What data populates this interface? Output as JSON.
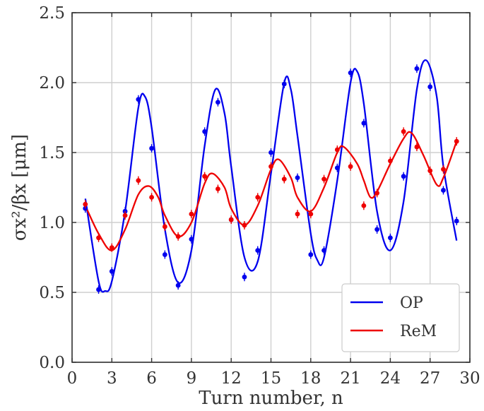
{
  "chart_data": {
    "type": "scatter",
    "xlabel": "Turn number, n",
    "ylabel": "σx²/βx [μm]",
    "xlim": [
      0,
      30
    ],
    "ylim": [
      0.0,
      2.5
    ],
    "xticks": [
      "0",
      "3",
      "6",
      "9",
      "12",
      "15",
      "18",
      "21",
      "24",
      "27",
      "30"
    ],
    "yticks": [
      "0.0",
      "0.5",
      "1.0",
      "1.5",
      "2.0",
      "2.5"
    ],
    "grid": true,
    "legend_position": "bottom-right",
    "series": [
      {
        "name": "OP",
        "color": "#0000ee",
        "points": [
          [
            1,
            1.1
          ],
          [
            2,
            0.52
          ],
          [
            3,
            0.65
          ],
          [
            4,
            1.08
          ],
          [
            5,
            1.88
          ],
          [
            6,
            1.53
          ],
          [
            7,
            0.77
          ],
          [
            8,
            0.55
          ],
          [
            9,
            0.88
          ],
          [
            10,
            1.65
          ],
          [
            11,
            1.86
          ],
          [
            12,
            1.02
          ],
          [
            13,
            0.61
          ],
          [
            14,
            0.8
          ],
          [
            15,
            1.5
          ],
          [
            16,
            1.99
          ],
          [
            17,
            1.32
          ],
          [
            18,
            0.77
          ],
          [
            19,
            0.8
          ],
          [
            20,
            1.39
          ],
          [
            21,
            2.07
          ],
          [
            22,
            1.71
          ],
          [
            23,
            0.95
          ],
          [
            24,
            0.89
          ],
          [
            25,
            1.33
          ],
          [
            26,
            2.1
          ],
          [
            27,
            1.97
          ],
          [
            28,
            1.23
          ],
          [
            29,
            1.01
          ]
        ],
        "fit": [
          [
            1,
            1.17
          ],
          [
            2,
            0.58
          ],
          [
            2.5,
            0.51
          ],
          [
            3,
            0.58
          ],
          [
            4,
            1.08
          ],
          [
            5,
            1.82
          ],
          [
            5.5,
            1.9
          ],
          [
            6,
            1.68
          ],
          [
            7,
            0.95
          ],
          [
            8,
            0.57
          ],
          [
            9,
            0.8
          ],
          [
            10,
            1.55
          ],
          [
            10.8,
            1.95
          ],
          [
            11.5,
            1.78
          ],
          [
            12,
            1.4
          ],
          [
            13,
            0.75
          ],
          [
            14,
            0.72
          ],
          [
            15,
            1.35
          ],
          [
            16,
            2.0
          ],
          [
            16.5,
            1.95
          ],
          [
            17,
            1.62
          ],
          [
            18,
            0.92
          ],
          [
            18.5,
            0.73
          ],
          [
            19,
            0.75
          ],
          [
            20,
            1.3
          ],
          [
            21,
            2.0
          ],
          [
            21.5,
            2.08
          ],
          [
            22,
            1.85
          ],
          [
            23,
            1.08
          ],
          [
            24,
            0.8
          ],
          [
            25,
            1.15
          ],
          [
            26,
            1.95
          ],
          [
            26.7,
            2.16
          ],
          [
            27.5,
            1.9
          ],
          [
            28,
            1.4
          ],
          [
            29,
            0.87
          ]
        ]
      },
      {
        "name": "ReM",
        "color": "#ee0000",
        "points": [
          [
            1,
            1.13
          ],
          [
            2,
            0.89
          ],
          [
            3,
            0.82
          ],
          [
            4,
            1.05
          ],
          [
            5,
            1.3
          ],
          [
            6,
            1.18
          ],
          [
            7,
            0.97
          ],
          [
            8,
            0.9
          ],
          [
            9,
            1.06
          ],
          [
            10,
            1.33
          ],
          [
            11,
            1.24
          ],
          [
            12,
            1.02
          ],
          [
            13,
            0.98
          ],
          [
            14,
            1.18
          ],
          [
            15,
            1.4
          ],
          [
            16,
            1.31
          ],
          [
            17,
            1.06
          ],
          [
            18,
            1.06
          ],
          [
            19,
            1.31
          ],
          [
            20,
            1.52
          ],
          [
            21,
            1.4
          ],
          [
            22,
            1.12
          ],
          [
            23,
            1.21
          ],
          [
            24,
            1.44
          ],
          [
            25,
            1.65
          ],
          [
            26,
            1.54
          ],
          [
            27,
            1.37
          ],
          [
            28,
            1.38
          ],
          [
            29,
            1.58
          ]
        ],
        "fit": [
          [
            1,
            1.12
          ],
          [
            2,
            0.92
          ],
          [
            3,
            0.8
          ],
          [
            4,
            0.95
          ],
          [
            5,
            1.2
          ],
          [
            5.8,
            1.26
          ],
          [
            6.5,
            1.18
          ],
          [
            7,
            1.05
          ],
          [
            8,
            0.9
          ],
          [
            9,
            1.0
          ],
          [
            10,
            1.28
          ],
          [
            10.6,
            1.35
          ],
          [
            11.5,
            1.25
          ],
          [
            12,
            1.1
          ],
          [
            13,
            0.98
          ],
          [
            14,
            1.12
          ],
          [
            15,
            1.38
          ],
          [
            15.6,
            1.45
          ],
          [
            16.5,
            1.32
          ],
          [
            17,
            1.18
          ],
          [
            18,
            1.08
          ],
          [
            19,
            1.25
          ],
          [
            20,
            1.5
          ],
          [
            20.5,
            1.54
          ],
          [
            21.5,
            1.42
          ],
          [
            22,
            1.3
          ],
          [
            22.5,
            1.18
          ],
          [
            23,
            1.22
          ],
          [
            24,
            1.42
          ],
          [
            25,
            1.6
          ],
          [
            25.6,
            1.64
          ],
          [
            26.5,
            1.48
          ],
          [
            27.5,
            1.27
          ],
          [
            28,
            1.32
          ],
          [
            29,
            1.58
          ]
        ]
      }
    ]
  }
}
